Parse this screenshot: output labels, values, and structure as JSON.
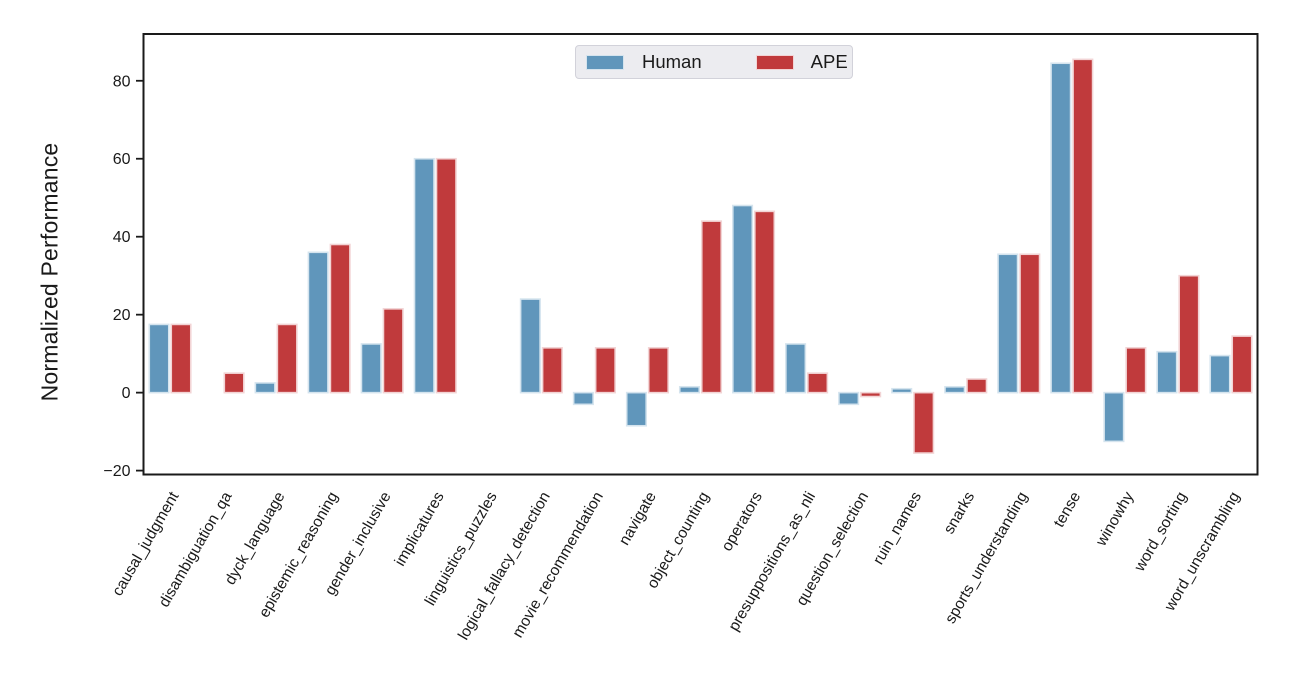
{
  "figure": {
    "ylabel": "Normalized Performance"
  },
  "colors": {
    "background": "#ffffff",
    "spine": "#1a1a1a",
    "text": "#1a1a1a",
    "legend_bg": "#ececf0",
    "legend_border": "#d2d2da",
    "human_blue": "#6096bb",
    "ape_red": "#c03a3c"
  },
  "chart_data": {
    "type": "bar",
    "title": "",
    "xlabel": "",
    "ylabel": "Normalized Performance",
    "ylim": [
      -21,
      92
    ],
    "grid": false,
    "legend_position": "upper center",
    "x_label_rotation_deg": 60,
    "categories": [
      "causal_judgment",
      "disambiguation_qa",
      "dyck_language",
      "epistemic_reasoning",
      "gender_inclusive",
      "implicatures",
      "linguistics_puzzles",
      "logical_fallacy_detection",
      "movie_recommendation",
      "navigate",
      "object_counting",
      "operators",
      "presuppositions_as_nli",
      "question_selection",
      "ruin_names",
      "snarks",
      "sports_understanding",
      "tense",
      "winowhy",
      "word_sorting",
      "word_unscrambling"
    ],
    "series": [
      {
        "name": "Human",
        "color": "#6096bb",
        "edge_color": "#d5e4ee",
        "values": [
          17.5,
          0,
          2.5,
          36,
          12.5,
          60,
          0,
          24,
          -3,
          -8.5,
          1.5,
          48,
          12.5,
          -3,
          1,
          1.5,
          35.5,
          84.5,
          -12.5,
          10.5,
          9.5
        ]
      },
      {
        "name": "APE",
        "color": "#c03a3c",
        "edge_color": "#f2d4d5",
        "values": [
          17.5,
          5,
          17.5,
          38,
          21.5,
          60,
          0,
          11.5,
          11.5,
          11.5,
          44,
          46.5,
          5,
          -1,
          -15.5,
          3.5,
          35.5,
          85.5,
          11.5,
          30,
          14.5
        ]
      }
    ],
    "yticks": [
      {
        "value": 80,
        "label": "80"
      },
      {
        "value": 60,
        "label": "60"
      },
      {
        "value": 40,
        "label": "40"
      },
      {
        "value": 20,
        "label": "20"
      },
      {
        "value": 0,
        "label": "0"
      },
      {
        "value": -20,
        "label": "−20"
      }
    ]
  }
}
